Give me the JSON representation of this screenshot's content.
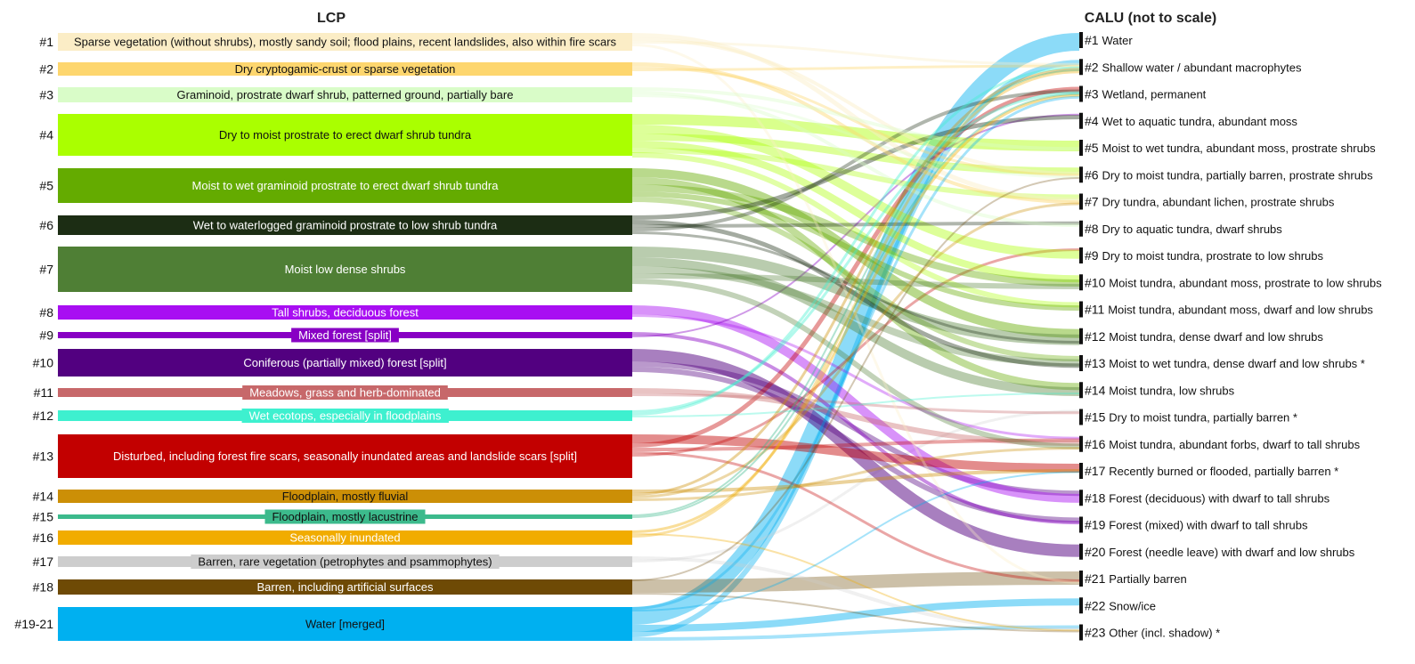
{
  "headers": {
    "left": "LCP",
    "right": "CALU (not to scale)"
  },
  "lcp": [
    {
      "num": "#1",
      "label": "Sparse vegetation (without shrubs), mostly sandy soil; flood plains, recent landslides, also within fire scars",
      "color": "#fbedc6"
    },
    {
      "num": "#2",
      "label": "Dry cryptogamic-crust or sparse vegetation",
      "color": "#fdd66e"
    },
    {
      "num": "#3",
      "label": "Graminoid, prostrate dwarf shrub, patterned ground, partially bare",
      "color": "#d9fcc8"
    },
    {
      "num": "#4",
      "label": "Dry to moist prostrate to erect dwarf shrub tundra",
      "color": "#aaff00"
    },
    {
      "num": "#5",
      "label": "Moist to wet graminoid prostrate to erect dwarf shrub tundra",
      "color": "#64ab00"
    },
    {
      "num": "#6",
      "label": "Wet to waterlogged graminoid prostrate to low shrub tundra",
      "color": "#1c2d14"
    },
    {
      "num": "#7",
      "label": "Moist low dense shrubs",
      "color": "#4f7f35"
    },
    {
      "num": "#8",
      "label": "Tall shrubs, deciduous forest",
      "color": "#a80ef2"
    },
    {
      "num": "#9",
      "label": "Mixed forest [split]",
      "color": "#8800c4"
    },
    {
      "num": "#10",
      "label": "Coniferous (partially mixed) forest [split]",
      "color": "#520080"
    },
    {
      "num": "#11",
      "label": "Meadows, grass and herb-dominated",
      "color": "#c7686a"
    },
    {
      "num": "#12",
      "label": "Wet ecotops, especially in floodplains",
      "color": "#3ef0cf"
    },
    {
      "num": "#13",
      "label": "Disturbed, including forest fire scars, seasonally inundated areas and landslide scars [split]",
      "color": "#c20000"
    },
    {
      "num": "#14",
      "label": "Floodplain, mostly fluvial",
      "color": "#cc8f06"
    },
    {
      "num": "#15",
      "label": "Floodplain, mostly lacustrine",
      "color": "#3cba8c"
    },
    {
      "num": "#16",
      "label": "Seasonally inundated",
      "color": "#f1ac00"
    },
    {
      "num": "#17",
      "label": "Barren, rare vegetation (petrophytes and psammophytes)",
      "color": "#cdcdcd"
    },
    {
      "num": "#18",
      "label": "Barren, including artificial surfaces",
      "color": "#6e4a05"
    },
    {
      "num": "#19-21",
      "label": "Water [merged]",
      "color": "#00b0f0"
    }
  ],
  "calu": [
    {
      "num": "#1",
      "label": "Water"
    },
    {
      "num": "#2",
      "label": "Shallow water / abundant macrophytes"
    },
    {
      "num": "#3",
      "label": "Wetland, permanent"
    },
    {
      "num": "#4",
      "label": "Wet to aquatic tundra, abundant moss"
    },
    {
      "num": "#5",
      "label": "Moist to wet tundra, abundant moss, prostrate shrubs"
    },
    {
      "num": "#6",
      "label": "Dry to moist tundra, partially barren, prostrate shrubs"
    },
    {
      "num": "#7",
      "label": "Dry tundra, abundant lichen, prostrate shrubs"
    },
    {
      "num": "#8",
      "label": "Dry to aquatic tundra, dwarf shrubs"
    },
    {
      "num": "#9",
      "label": "Dry to moist tundra, prostrate to low shrubs"
    },
    {
      "num": "#10",
      "label": "Moist tundra, abundant moss, prostrate to low shrubs"
    },
    {
      "num": "#11",
      "label": "Moist tundra, abundant moss, dwarf and low shrubs"
    },
    {
      "num": "#12",
      "label": "Moist tundra, dense dwarf and low shrubs"
    },
    {
      "num": "#13",
      "label": "Moist to wet tundra, dense dwarf and low shrubs *"
    },
    {
      "num": "#14",
      "label": "Moist tundra, low shrubs"
    },
    {
      "num": "#15",
      "label": "Dry to moist tundra, partially barren *"
    },
    {
      "num": "#16",
      "label": "Moist tundra, abundant forbs, dwarf to tall shrubs"
    },
    {
      "num": "#17",
      "label": "Recently burned or flooded, partially barren *"
    },
    {
      "num": "#18",
      "label": "Forest (deciduous) with dwarf to tall shrubs"
    },
    {
      "num": "#19",
      "label": "Forest (mixed) with dwarf to tall shrubs"
    },
    {
      "num": "#20",
      "label": "Forest (needle leave) with dwarf and low shrubs"
    },
    {
      "num": "#21",
      "label": "Partially barren"
    },
    {
      "num": "#22",
      "label": "Snow/ice"
    },
    {
      "num": "#23",
      "label": "Other (incl. shadow) *"
    }
  ]
}
